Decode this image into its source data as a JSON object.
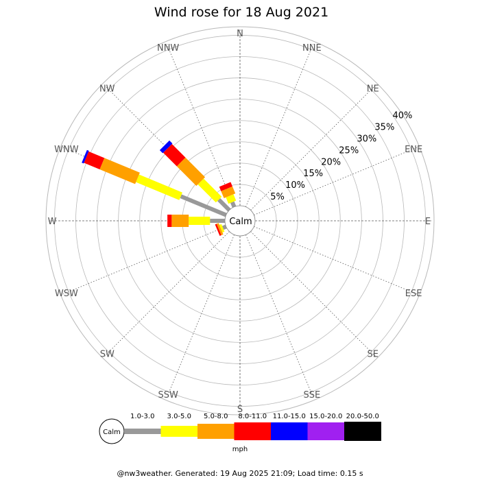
{
  "chart_data": {
    "type": "windrose",
    "title": "Wind rose for 18 Aug 2021",
    "directions": [
      "N",
      "NNE",
      "NE",
      "ENE",
      "E",
      "ESE",
      "SE",
      "SSE",
      "S",
      "SSW",
      "SW",
      "WSW",
      "W",
      "WNW",
      "NW",
      "NNW"
    ],
    "ring_labels": [
      "5%",
      "10%",
      "15%",
      "20%",
      "25%",
      "30%",
      "35%",
      "40%"
    ],
    "ring_values": [
      5,
      10,
      15,
      20,
      25,
      30,
      35,
      40
    ],
    "r_max": 42,
    "calm_label": "Calm",
    "unit_label": "mph",
    "speed_bins": [
      "1.0-3.0",
      "3.0-5.0",
      "5.0-8.0",
      "8.0-11.0",
      "11.0-15.0",
      "15.0-20.0",
      "20.0-50.0"
    ],
    "bin_colors": [
      "#999999",
      "#ffff00",
      "#ffa000",
      "#ff0000",
      "#0000ff",
      "#a020f0",
      "#000000"
    ],
    "series": [
      {
        "direction": "W",
        "values": [
          3.5,
          5.0,
          4.0,
          1.0,
          0,
          0,
          0
        ]
      },
      {
        "direction": "WNW",
        "values": [
          11.5,
          11.0,
          9.0,
          4.0,
          0.5,
          0,
          0
        ]
      },
      {
        "direction": "NW",
        "values": [
          3.5,
          6.0,
          6.5,
          4.5,
          1.0,
          0,
          0
        ]
      },
      {
        "direction": "NNW",
        "values": [
          1.2,
          1.6,
          1.8,
          1.1,
          0,
          0,
          0
        ]
      },
      {
        "direction": "WSW",
        "values": [
          0.8,
          0.5,
          0.5,
          0.4,
          0,
          0,
          0
        ]
      }
    ]
  },
  "footer": "@nw3weather. Generated: 19 Aug 2025 21:09; Load time: 0.15 s"
}
